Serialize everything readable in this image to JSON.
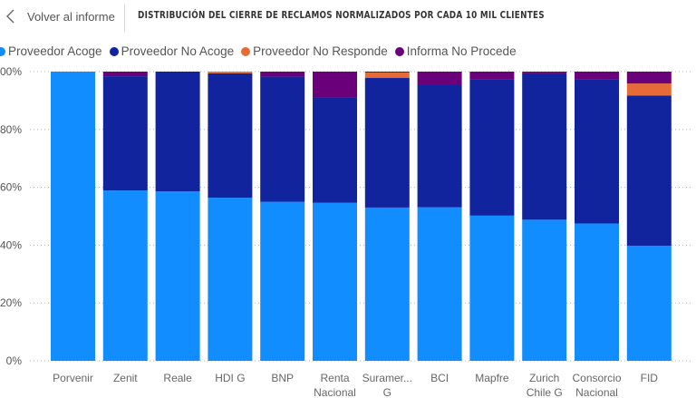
{
  "header": {
    "back_label": "Volver al informe",
    "back_icon": "chevron-left-icon",
    "title": "DISTRIBUCIÓN DEL CIERRE DE RECLAMOS NORMALIZADOS POR CADA 10 MIL CLIENTES"
  },
  "legend": [
    {
      "label": "Proveedor Acoge",
      "color": "#118DFF"
    },
    {
      "label": "Proveedor No Acoge",
      "color": "#12239E"
    },
    {
      "label": "Proveedor No Responde",
      "color": "#E66C37"
    },
    {
      "label": "Informa No Procede",
      "color": "#6B007B"
    }
  ],
  "chart_data": {
    "type": "bar",
    "stacked": "100%",
    "title": "DISTRIBUCIÓN DEL CIERRE DE RECLAMOS NORMALIZADOS POR CADA 10 MIL CLIENTES",
    "xlabel": "",
    "ylabel": "",
    "ylim": [
      0,
      100
    ],
    "yticks": [
      "0%",
      "20%",
      "40%",
      "60%",
      "80%",
      "00%"
    ],
    "grid": true,
    "legend_position": "top-left",
    "categories": [
      [
        "Porvenir"
      ],
      [
        "Zenit"
      ],
      [
        "Reale"
      ],
      [
        "HDI G"
      ],
      [
        "BNP"
      ],
      [
        "Renta",
        "Nacional"
      ],
      [
        "Suramer...",
        "G"
      ],
      [
        "BCI"
      ],
      [
        "Mapfre"
      ],
      [
        "Zurich",
        "Chile G"
      ],
      [
        "Consorcio",
        "Nacional"
      ],
      [
        "FID"
      ]
    ],
    "series": [
      {
        "name": "Proveedor Acoge",
        "color": "#118DFF",
        "values": [
          100,
          58.9,
          58.6,
          56.4,
          55.0,
          54.7,
          53.0,
          53.1,
          50.2,
          48.8,
          47.5,
          39.8
        ]
      },
      {
        "name": "Proveedor No Acoge",
        "color": "#12239E",
        "values": [
          0,
          39.5,
          41.4,
          43.0,
          43.3,
          36.5,
          44.8,
          42.2,
          47.1,
          50.6,
          49.8,
          51.9
        ]
      },
      {
        "name": "Proveedor No Responde",
        "color": "#E66C37",
        "values": [
          0,
          0,
          0,
          0.6,
          0,
          0,
          1.9,
          0,
          0,
          0,
          0,
          4.2
        ]
      },
      {
        "name": "Informa No Procede",
        "color": "#6B007B",
        "values": [
          0,
          1.6,
          0,
          0,
          1.7,
          8.8,
          0.3,
          4.7,
          2.7,
          0.6,
          2.7,
          4.1
        ]
      }
    ]
  }
}
